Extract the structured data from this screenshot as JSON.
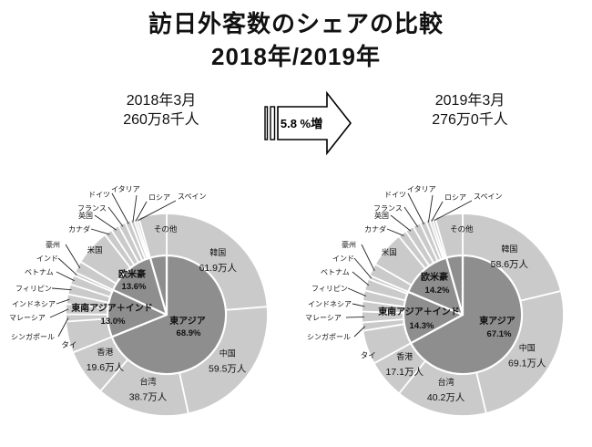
{
  "title": {
    "line1": "訪日外客数のシェアの比較",
    "line2": "2018年/2019年"
  },
  "comparison": {
    "before": {
      "period": "2018年3月",
      "total": "260万8千人"
    },
    "change_arrow_label": "5.8 %増",
    "after": {
      "period": "2019年3月",
      "total": "276万0千人"
    }
  },
  "colors": {
    "inner_pie": "#8e8e8e",
    "outer_ring": "#cacaca",
    "divider": "#ffffff",
    "text": "#111111",
    "leader_line": "#222222"
  },
  "chart_data": [
    {
      "type": "pie",
      "variant": "nested-donut (inner = region share, outer = countries clockwise from top)",
      "title": "2018年3月",
      "total_label": "260万8千人",
      "unit": "万人",
      "note": "values for segments without a printed label are estimated from wedge angles",
      "regions": [
        {
          "label": "東アジア",
          "pct_label": "68.9%"
        },
        {
          "label": "東南アジア＋インド",
          "pct_label": "13.0%"
        },
        {
          "label": "欧米豪",
          "pct_label": "13.6%"
        },
        {
          "label": "その他",
          "pct_label": ""
        }
      ],
      "segments": [
        {
          "label": "韓国",
          "region": 0,
          "value": 61.9,
          "value_label": "61.9万人"
        },
        {
          "label": "中国",
          "region": 0,
          "value": 59.5,
          "value_label": "59.5万人"
        },
        {
          "label": "台湾",
          "region": 0,
          "value": 38.7,
          "value_label": "38.7万人"
        },
        {
          "label": "香港",
          "region": 0,
          "value": 19.6,
          "value_label": "19.6万人"
        },
        {
          "label": "タイ",
          "region": 1,
          "value": 13.1,
          "value_label": ""
        },
        {
          "label": "シンガポール",
          "region": 1,
          "value": 3.0,
          "value_label": ""
        },
        {
          "label": "マレーシア",
          "region": 1,
          "value": 4.3,
          "value_label": ""
        },
        {
          "label": "インドネシア",
          "region": 1,
          "value": 4.0,
          "value_label": ""
        },
        {
          "label": "フィリピン",
          "region": 1,
          "value": 4.2,
          "value_label": ""
        },
        {
          "label": "ベトナム",
          "region": 1,
          "value": 3.9,
          "value_label": ""
        },
        {
          "label": "インド",
          "region": 1,
          "value": 1.4,
          "value_label": ""
        },
        {
          "label": "豪州",
          "region": 2,
          "value": 4.9,
          "value_label": ""
        },
        {
          "label": "米国",
          "region": 2,
          "value": 15.0,
          "value_label": ""
        },
        {
          "label": "カナダ",
          "region": 2,
          "value": 3.3,
          "value_label": ""
        },
        {
          "label": "英国",
          "region": 2,
          "value": 3.4,
          "value_label": ""
        },
        {
          "label": "フランス",
          "region": 2,
          "value": 3.0,
          "value_label": ""
        },
        {
          "label": "ドイツ",
          "region": 2,
          "value": 2.3,
          "value_label": ""
        },
        {
          "label": "イタリア",
          "region": 2,
          "value": 1.5,
          "value_label": ""
        },
        {
          "label": "ロシア",
          "region": 2,
          "value": 1.0,
          "value_label": ""
        },
        {
          "label": "スペイン",
          "region": 2,
          "value": 1.1,
          "value_label": ""
        },
        {
          "label": "その他",
          "region": 3,
          "value": 11.7,
          "value_label": ""
        }
      ]
    },
    {
      "type": "pie",
      "variant": "nested-donut (inner = region share, outer = countries clockwise from top)",
      "title": "2019年3月",
      "total_label": "276万0千人",
      "unit": "万人",
      "note": "values for segments without a printed label are estimated from wedge angles",
      "regions": [
        {
          "label": "東アジア",
          "pct_label": "67.1%"
        },
        {
          "label": "東南アジア＋インド",
          "pct_label": "14.3%"
        },
        {
          "label": "欧米豪",
          "pct_label": "14.2%"
        },
        {
          "label": "その他",
          "pct_label": ""
        }
      ],
      "segments": [
        {
          "label": "韓国",
          "region": 0,
          "value": 58.6,
          "value_label": "58.6万人"
        },
        {
          "label": "中国",
          "region": 0,
          "value": 69.1,
          "value_label": "69.1万人"
        },
        {
          "label": "台湾",
          "region": 0,
          "value": 40.2,
          "value_label": "40.2万人"
        },
        {
          "label": "香港",
          "region": 0,
          "value": 17.1,
          "value_label": "17.1万人"
        },
        {
          "label": "タイ",
          "region": 1,
          "value": 15.0,
          "value_label": ""
        },
        {
          "label": "シンガポール",
          "region": 1,
          "value": 3.6,
          "value_label": ""
        },
        {
          "label": "マレーシア",
          "region": 1,
          "value": 4.8,
          "value_label": ""
        },
        {
          "label": "インドネシア",
          "region": 1,
          "value": 4.6,
          "value_label": ""
        },
        {
          "label": "フィリピン",
          "region": 1,
          "value": 4.7,
          "value_label": ""
        },
        {
          "label": "ベトナム",
          "region": 1,
          "value": 5.2,
          "value_label": ""
        },
        {
          "label": "インド",
          "region": 1,
          "value": 1.6,
          "value_label": ""
        },
        {
          "label": "豪州",
          "region": 2,
          "value": 5.5,
          "value_label": ""
        },
        {
          "label": "米国",
          "region": 2,
          "value": 16.0,
          "value_label": ""
        },
        {
          "label": "カナダ",
          "region": 2,
          "value": 3.7,
          "value_label": ""
        },
        {
          "label": "英国",
          "region": 2,
          "value": 3.8,
          "value_label": ""
        },
        {
          "label": "フランス",
          "region": 2,
          "value": 3.4,
          "value_label": ""
        },
        {
          "label": "ドイツ",
          "region": 2,
          "value": 2.6,
          "value_label": ""
        },
        {
          "label": "イタリア",
          "region": 2,
          "value": 1.8,
          "value_label": ""
        },
        {
          "label": "ロシア",
          "region": 2,
          "value": 1.2,
          "value_label": ""
        },
        {
          "label": "スペイン",
          "region": 2,
          "value": 1.3,
          "value_label": ""
        },
        {
          "label": "その他",
          "region": 3,
          "value": 12.2,
          "value_label": ""
        }
      ]
    }
  ]
}
